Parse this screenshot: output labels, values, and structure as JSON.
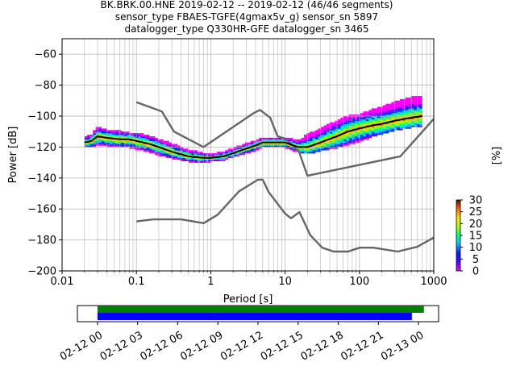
{
  "chart_data": [
    {
      "type": "heatmap",
      "title_lines": [
        "BK.BRK.00.HNE   2019-02-12 -- 2019-02-12  (46/46 segments)",
        "sensor_type FBAES-TGFE(4gmax5v_g) sensor_sn 5897",
        "datalogger_type Q330HR-GFE datalogger_sn 3465"
      ],
      "xlabel": "Period [s]",
      "ylabel": "Power [dB]",
      "x_scale": "log",
      "xlim": [
        0.01,
        1000
      ],
      "ylim": [
        -200,
        -50
      ],
      "x_ticks": [
        0.01,
        0.1,
        1,
        10,
        100,
        1000
      ],
      "x_tick_labels": [
        "0.01",
        "0.1",
        "1",
        "10",
        "100",
        "1000"
      ],
      "y_ticks": [
        -200,
        -180,
        -160,
        -140,
        -120,
        -100,
        -80,
        -60
      ],
      "y_tick_labels": [
        "−200",
        "−180",
        "−160",
        "−140",
        "−120",
        "−100",
        "−80",
        "−60"
      ],
      "grid": true,
      "mean_curve": {
        "x": [
          0.02,
          0.025,
          0.03,
          0.04,
          0.06,
          0.08,
          0.1,
          0.15,
          0.2,
          0.3,
          0.5,
          0.8,
          1.0,
          1.5,
          2,
          3,
          4,
          5,
          7,
          10,
          15,
          20,
          30,
          50,
          70,
          100,
          150,
          200,
          300,
          500,
          700
        ],
        "y": [
          -117,
          -116,
          -113,
          -114,
          -115,
          -115,
          -116,
          -118,
          -120,
          -123,
          -126,
          -127,
          -127,
          -126,
          -124,
          -121,
          -119,
          -117,
          -117,
          -117,
          -120,
          -120,
          -117,
          -113,
          -110,
          -108,
          -106,
          -105,
          -103,
          -101,
          -100
        ]
      },
      "density_band": {
        "x": [
          0.02,
          0.025,
          0.03,
          0.04,
          0.06,
          0.08,
          0.1,
          0.15,
          0.2,
          0.3,
          0.5,
          0.8,
          1.0,
          1.5,
          2,
          3,
          4,
          5,
          7,
          10,
          15,
          20,
          30,
          50,
          70,
          100,
          150,
          200,
          300,
          500,
          700
        ],
        "upper": [
          -114,
          -112,
          -107,
          -109,
          -110,
          -111,
          -111,
          -113,
          -115,
          -118,
          -122,
          -124,
          -125,
          -123,
          -121,
          -118,
          -116,
          -114,
          -114,
          -114,
          -116,
          -112,
          -108,
          -103,
          -100,
          -99,
          -96,
          -94,
          -91,
          -88,
          -87
        ],
        "lower": [
          -120,
          -120,
          -118,
          -119,
          -120,
          -120,
          -121,
          -123,
          -125,
          -127,
          -129,
          -130,
          -129,
          -128,
          -126,
          -124,
          -122,
          -120,
          -120,
          -120,
          -123,
          -124,
          -122,
          -120,
          -118,
          -116,
          -113,
          -111,
          -109,
          -107,
          -106
        ]
      },
      "noise_models": [
        {
          "x": [
            0.1,
            0.22,
            0.32,
            0.8,
            3.8,
            4.6,
            6.3,
            7.9,
            10,
            12,
            15.4,
            20,
            354.8,
            10000
          ],
          "y": [
            -91,
            -97,
            -110,
            -120,
            -98,
            -96,
            -101,
            -113,
            -114.5,
            -118,
            -123,
            -138.5,
            -126,
            -48
          ]
        },
        {
          "x": [
            0.1,
            0.17,
            0.4,
            0.8,
            1.24,
            2.4,
            4.3,
            5,
            6,
            10,
            12,
            15.6,
            21.9,
            31.6,
            45,
            70,
            101,
            154,
            328,
            600,
            10000
          ],
          "y": [
            -168,
            -166.7,
            -166.7,
            -169.2,
            -163.7,
            -148.6,
            -141.1,
            -141.1,
            -149,
            -163,
            -166,
            -162,
            -177,
            -185,
            -187.5,
            -187.5,
            -185,
            -185,
            -187.5,
            -184.4,
            -151.5
          ]
        }
      ],
      "colorbar": {
        "label": "[%]",
        "ticks": [
          0,
          5,
          10,
          15,
          20,
          25,
          30
        ],
        "tick_labels": [
          "0",
          "5",
          "10",
          "15",
          "20",
          "25",
          "30"
        ],
        "range": [
          0,
          30
        ]
      }
    },
    {
      "type": "bar",
      "description_role": "data coverage timeline",
      "x_ticks": [
        "02-12 00",
        "02-12 03",
        "02-12 06",
        "02-12 09",
        "02-12 12",
        "02-12 15",
        "02-12 18",
        "02-12 21",
        "02-13 00"
      ],
      "xlim_hours": [
        -1.5,
        25.5
      ],
      "tick_hours": [
        0,
        3,
        6,
        9,
        12,
        15,
        18,
        21,
        24
      ],
      "bars": [
        {
          "color": "#008000",
          "start_hour": 0,
          "end_hour": 24.4
        },
        {
          "color": "#0000ff",
          "start_hour": 0,
          "end_hour": 23.5
        }
      ]
    }
  ],
  "colors": {
    "noise_model": "#666666",
    "mean_curve": "#000000",
    "grid": "#b0b0b0"
  }
}
